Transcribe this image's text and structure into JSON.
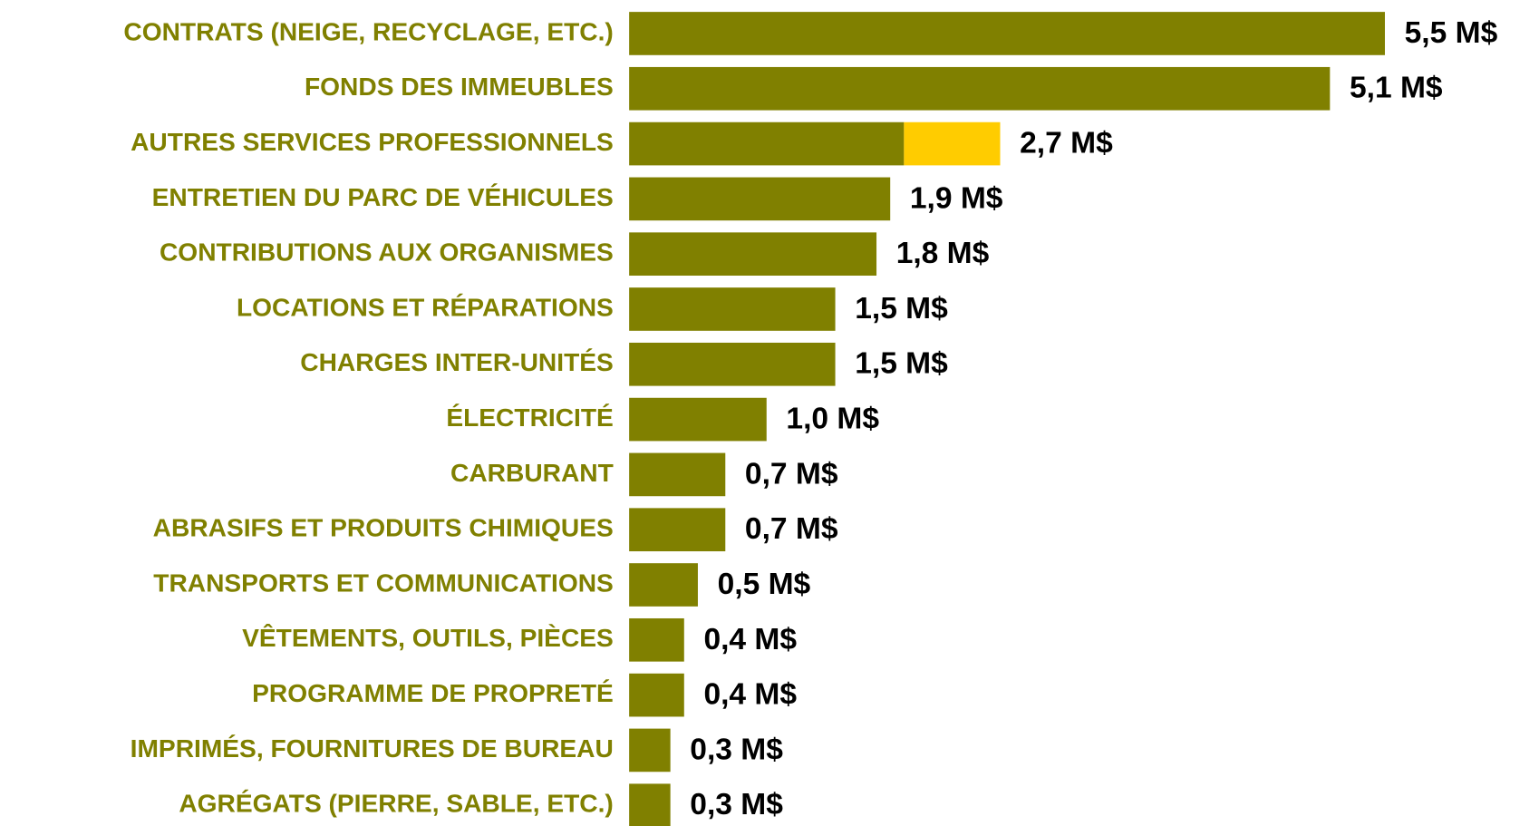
{
  "chart_data": {
    "type": "bar",
    "orientation": "horizontal",
    "categories": [
      "CONTRATS (NEIGE, RECYCLAGE, ETC.)",
      "FONDS DES IMMEUBLES",
      "AUTRES SERVICES PROFESSIONNELS",
      "ENTRETIEN DU PARC DE VÉHICULES",
      "CONTRIBUTIONS AUX ORGANISMES",
      "LOCATIONS ET RÉPARATIONS",
      "CHARGES INTER-UNITÉS",
      "ÉLECTRICITÉ",
      "CARBURANT",
      "ABRASIFS ET PRODUITS CHIMIQUES",
      "TRANSPORTS ET COMMUNICATIONS",
      "VÊTEMENTS, OUTILS, PIÈCES",
      "PROGRAMME DE PROPRETÉ",
      "IMPRIMÉS, FOURNITURES DE BUREAU",
      "AGRÉGATS (PIERRE, SABLE, ETC.)"
    ],
    "series": [
      {
        "color": "#808000",
        "values": [
          5.5,
          5.1,
          2.0,
          1.9,
          1.8,
          1.5,
          1.5,
          1.0,
          0.7,
          0.7,
          0.5,
          0.4,
          0.4,
          0.3,
          0.3
        ]
      },
      {
        "color": "#ffcc00",
        "values": [
          null,
          null,
          0.7,
          null,
          null,
          null,
          null,
          null,
          null,
          null,
          null,
          null,
          null,
          null,
          null
        ]
      }
    ],
    "totals": [
      5.5,
      5.1,
      2.7,
      1.9,
      1.8,
      1.5,
      1.5,
      1.0,
      0.7,
      0.7,
      0.5,
      0.4,
      0.4,
      0.3,
      0.3
    ],
    "total_labels": [
      "5,5 M$",
      "5,1 M$",
      "2,7 M$",
      "1,9 M$",
      "1,8 M$",
      "1,5 M$",
      "1,5 M$",
      "1,0 M$",
      "0,7 M$",
      "0,7 M$",
      "0,5 M$",
      "0,4 M$",
      "0,4 M$",
      "0,3 M$",
      "0,3 M$"
    ],
    "xlim": [
      0,
      6
    ]
  }
}
